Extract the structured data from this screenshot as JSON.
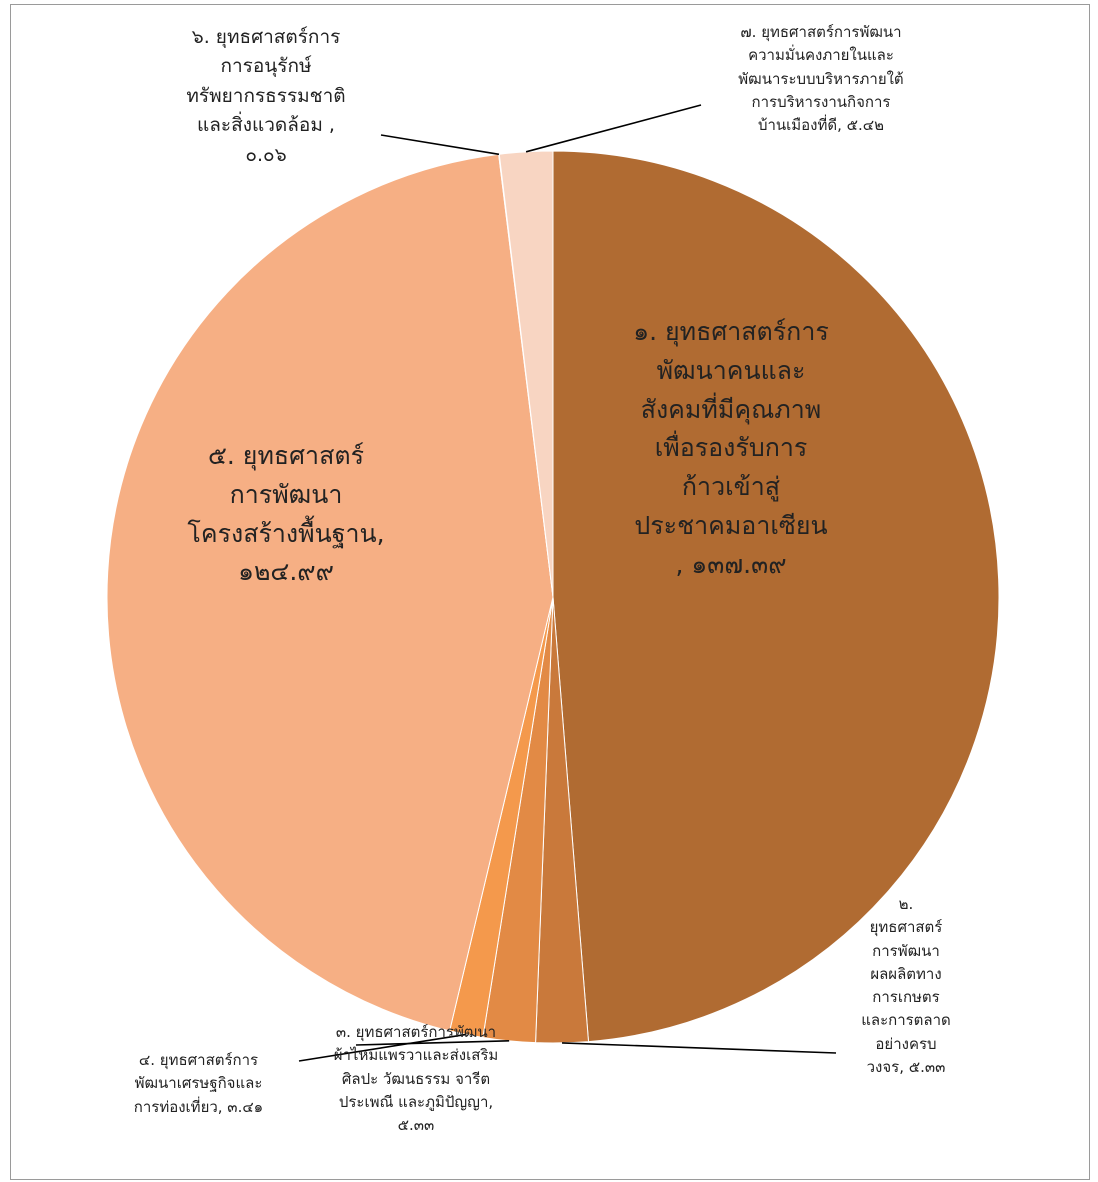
{
  "chart_data": {
    "type": "pie",
    "title": "",
    "slices": [
      {
        "label": "๑. ยุทธศาสตร์การพัฒนาคนและสังคมที่มีคุณภาพเพื่อรองรับการก้าวเข้าสู่ประชาคมอาเซียน",
        "value_text": "๑๓๗.๓๙",
        "value": 137.39,
        "color": "#B06B32"
      },
      {
        "label": "๒. ยุทธศาสตร์การพัฒนาผลผลิตทางการเกษตรและการตลาดอย่างครบวงจร",
        "value_text": "๕.๓๓",
        "value": 5.33,
        "color": "#C9793B"
      },
      {
        "label": "๓. ยุทธศาสตร์การพัฒนาผ้าไหมแพรวาและส่งเสริมศิลปะ วัฒนธรรม จารีตประเพณี และภูมิปัญญา",
        "value_text": "๕.๓๓",
        "value": 5.33,
        "color": "#E28A45"
      },
      {
        "label": "๔. ยุทธศาสตร์การพัฒนาเศรษฐกิจและการท่องเที่ยว",
        "value_text": "๓.๔๑",
        "value": 3.41,
        "color": "#F4994C"
      },
      {
        "label": "๕. ยุทธศาสตร์การพัฒนาโครงสร้างพื้นฐาน",
        "value_text": "๑๒๔.๙๙",
        "value": 124.99,
        "color": "#F6AF84"
      },
      {
        "label": "๖. ยุทธศาสตร์การการอนุรักษ์ทรัพยากรธรรมชาติและสิ่งแวดล้อม",
        "value_text": "๐.๐๖",
        "value": 0.06,
        "color": "#F6C6A4"
      },
      {
        "label": "๗. ยุทธศาสตร์การพัฒนาความมั่นคงภายในและพัฒนาระบบบริหารภายใต้การบริหารงานกิจการบ้านเมืองที่ดี",
        "value_text": "๕.๔๒",
        "value": 5.42,
        "color": "#F8D5C2"
      }
    ]
  },
  "labels": {
    "s1": "๑. ยุทธศาสตร์การ\nพัฒนาคนและ\nสังคมที่มีคุณภาพ\nเพื่อรองรับการ\nก้าวเข้าสู่\nประชาคมอาเซียน\n, ๑๓๗.๓๙",
    "s2": "๒.\nยุทธศาสตร์\nการพัฒนา\nผลผลิตทาง\nการเกษตร\nและการตลาด\nอย่างครบ\nวงจร, ๕.๓๓",
    "s3": "๓. ยุทธศาสตร์การพัฒนา\nผ้าไหมแพรวาและส่งเสริม\nศิลปะ วัฒนธรรม จารีต\nประเพณี และภูมิปัญญา,\n๕.๓๓",
    "s4": "๔. ยุทธศาสตร์การ\nพัฒนาเศรษฐกิจและ\nการท่องเที่ยว, ๓.๔๑",
    "s5": "๕. ยุทธศาสตร์\nการพัฒนา\nโครงสร้างพื้นฐาน,\n๑๒๔.๙๙",
    "s6": "๖. ยุทธศาสตร์การ\nการอนุรักษ์\nทรัพยากรธรรมชาติ\nและสิ่งแวดล้อม ,\n๐.๐๖",
    "s7": "๗. ยุทธศาสตร์การพัฒนา\nความมั่นคงภายในและ\nพัฒนาระบบบริหารภายใต้\nการบริหารงานกิจการ\nบ้านเมืองที่ดี, ๕.๔๒"
  }
}
